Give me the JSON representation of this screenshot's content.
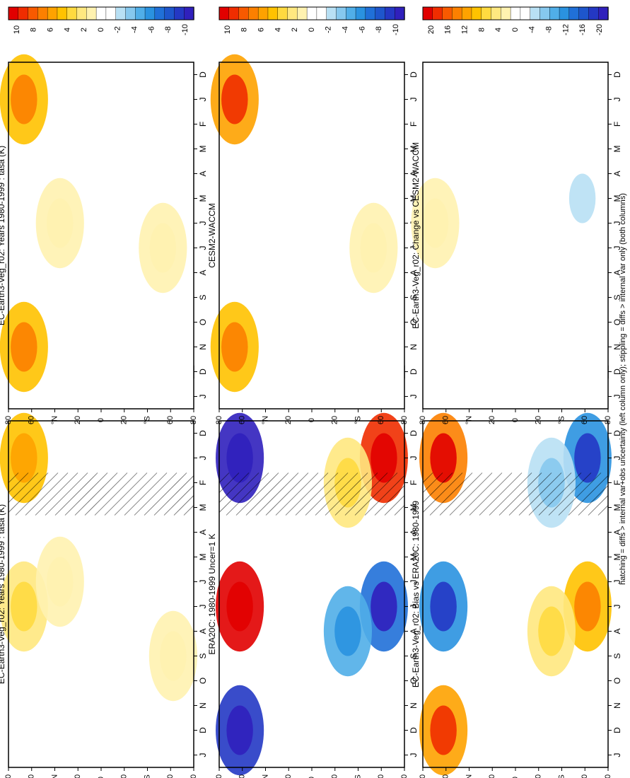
{
  "footer_note": "hatching = diffs > internal var+obs uncertainty (left column only); stippling = diffs > internal var only (both columns)",
  "month_ticks": [
    "D",
    "J",
    "F",
    "M",
    "A",
    "M",
    "J",
    "J",
    "A",
    "S",
    "O",
    "N",
    "D",
    "J"
  ],
  "lat_ticks": [
    "80",
    "60",
    "°N",
    "20",
    "0",
    "20",
    "°S",
    "60",
    "80"
  ],
  "colors": {
    "diverging": [
      "#e10000",
      "#f02d00",
      "#f85a00",
      "#fc8000",
      "#fea200",
      "#ffc200",
      "#ffda40",
      "#ffe880",
      "#fff2b0",
      "#ffffff",
      "#ffffff",
      "#b8e0f4",
      "#86c8ee",
      "#50aee8",
      "#2a92e0",
      "#2070d8",
      "#1e56cc",
      "#2438c4",
      "#3020bc"
    ]
  },
  "chart_data": [
    {
      "type": "heatmap",
      "title": "EC-Earth3-Veg_r02: Years 1980-1999 : tasa (K)",
      "x_categories": [
        "D",
        "J",
        "F",
        "M",
        "A",
        "M",
        "J",
        "J",
        "A",
        "S",
        "O",
        "N",
        "D",
        "J"
      ],
      "y_ticks": [
        "80",
        "60",
        "°N",
        "20",
        "0",
        "20",
        "°S",
        "60",
        "80"
      ],
      "colorbar_ticks": [
        "10",
        "8",
        "6",
        "4",
        "2",
        "0",
        "-2",
        "-4",
        "-6",
        "-8",
        "-10"
      ],
      "hatching": true,
      "features": [
        {
          "lat": 75,
          "month": "Jan",
          "value": 4
        },
        {
          "lat": 75,
          "month": "Jul",
          "value": 2
        },
        {
          "lat": 40,
          "month": "Jun",
          "value": 1
        },
        {
          "lat": -70,
          "month": "Sep",
          "value": 1
        }
      ]
    },
    {
      "type": "heatmap",
      "title": "EC-Earth3-Veg_r02: Years 1980-1999 : tasa (K)",
      "x_categories": [
        "D",
        "J",
        "F",
        "M",
        "A",
        "M",
        "J",
        "J",
        "A",
        "S",
        "O",
        "N",
        "D",
        "J"
      ],
      "y_ticks": [
        "80",
        "60",
        "°N",
        "20",
        "0",
        "20",
        "°S",
        "60",
        "80"
      ],
      "colorbar_ticks": [
        "10",
        "8",
        "6",
        "4",
        "2",
        "0",
        "-2",
        "-4",
        "-6",
        "-8",
        "-10"
      ],
      "hatching": false,
      "features": [
        {
          "lat": 75,
          "month": "Jan",
          "value": 5
        },
        {
          "lat": 75,
          "month": "Nov",
          "value": 5
        },
        {
          "lat": 40,
          "month": "Jun",
          "value": 1
        },
        {
          "lat": -60,
          "month": "Jul",
          "value": 1
        }
      ]
    },
    {
      "type": "heatmap",
      "title": "ERA20C: 1980-1999 Uncer=1 K",
      "x_categories": [
        "D",
        "J",
        "F",
        "M",
        "A",
        "M",
        "J",
        "J",
        "A",
        "S",
        "O",
        "N",
        "D",
        "J"
      ],
      "y_ticks": [
        "80",
        "60",
        "°N",
        "20",
        "0",
        "20",
        "°S",
        "60",
        "80"
      ],
      "colorbar_ticks": [
        "10",
        "8",
        "6",
        "4",
        "2",
        "0",
        "-2",
        "-4",
        "-6",
        "-8",
        "-10"
      ],
      "hatching": true,
      "features": [
        {
          "lat": 70,
          "month": "Jan",
          "value": -10
        },
        {
          "lat": 70,
          "month": "Jul",
          "value": 10
        },
        {
          "lat": 70,
          "month": "Dec",
          "value": -9
        },
        {
          "lat": -70,
          "month": "Jan",
          "value": 9
        },
        {
          "lat": -70,
          "month": "Jul",
          "value": -7
        },
        {
          "lat": -35,
          "month": "Aug",
          "value": -4
        },
        {
          "lat": -35,
          "month": "Feb",
          "value": 2
        }
      ]
    },
    {
      "type": "heatmap",
      "title": "CESM2-WACCM",
      "x_categories": [
        "D",
        "J",
        "F",
        "M",
        "A",
        "M",
        "J",
        "J",
        "A",
        "S",
        "O",
        "N",
        "D",
        "J"
      ],
      "y_ticks": [
        "80",
        "60",
        "°N",
        "20",
        "0",
        "20",
        "°S",
        "60",
        "80"
      ],
      "colorbar_ticks": [
        "10",
        "8",
        "6",
        "4",
        "2",
        "0",
        "-2",
        "-4",
        "-6",
        "-8",
        "-10"
      ],
      "hatching": false,
      "features": [
        {
          "lat": 75,
          "month": "Jan",
          "value": 6
        },
        {
          "lat": 75,
          "month": "Nov",
          "value": 5
        },
        {
          "lat": -60,
          "month": "Jul",
          "value": 1
        }
      ]
    },
    {
      "type": "heatmap",
      "title": "EC-Earth3-Veg_r02: Bias vs ERA20C: 1980-1999",
      "x_categories": [
        "D",
        "J",
        "F",
        "M",
        "A",
        "M",
        "J",
        "J",
        "A",
        "S",
        "O",
        "N",
        "D",
        "J"
      ],
      "y_ticks": [
        "80",
        "60",
        "°N",
        "20",
        "0",
        "20",
        "°S",
        "60",
        "80"
      ],
      "colorbar_ticks": [
        "20",
        "16",
        "12",
        "8",
        "4",
        "0",
        "-4",
        "-8",
        "-12",
        "-16",
        "-20"
      ],
      "hatching": true,
      "features": [
        {
          "lat": 70,
          "month": "Jan",
          "value": 14
        },
        {
          "lat": 70,
          "month": "Jul",
          "value": -12
        },
        {
          "lat": 70,
          "month": "Dec",
          "value": 12
        },
        {
          "lat": -70,
          "month": "Jan",
          "value": -12
        },
        {
          "lat": -70,
          "month": "Jul",
          "value": 9
        },
        {
          "lat": -35,
          "month": "Aug",
          "value": 4
        },
        {
          "lat": -35,
          "month": "Feb",
          "value": -4
        }
      ]
    },
    {
      "type": "heatmap",
      "title": "EC-Earth3-Veg_r02: Change vs CESM2-WACCM",
      "x_categories": [
        "D",
        "J",
        "F",
        "M",
        "A",
        "M",
        "J",
        "J",
        "A",
        "S",
        "O",
        "N",
        "D",
        "J"
      ],
      "y_ticks": [
        "80",
        "60",
        "°N",
        "20",
        "0",
        "20",
        "°S",
        "60",
        "80"
      ],
      "colorbar_ticks": [
        "20",
        "16",
        "12",
        "8",
        "4",
        "0",
        "-4",
        "-8",
        "-12",
        "-16",
        "-20"
      ],
      "hatching": false,
      "features": [
        {
          "lat": 78,
          "month": "Jun",
          "value": 2
        },
        {
          "lat": -65,
          "month": "May",
          "value": -3
        }
      ]
    }
  ]
}
